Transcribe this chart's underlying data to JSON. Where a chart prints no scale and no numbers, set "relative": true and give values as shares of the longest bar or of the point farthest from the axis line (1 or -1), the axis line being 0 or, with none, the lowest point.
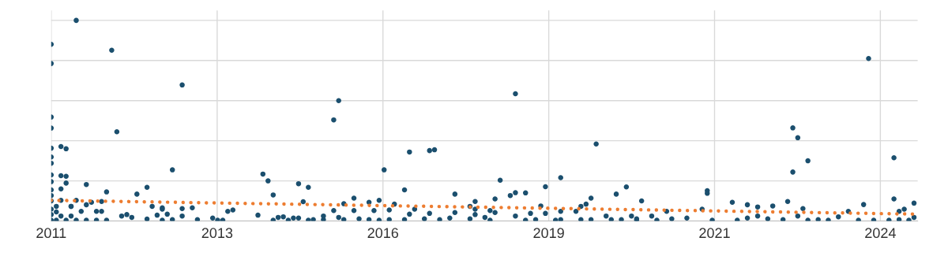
{
  "chart_data": {
    "type": "scatter",
    "relative": true,
    "grid": true,
    "marker": "circle",
    "xlim": [
      "2011-01-01",
      "2025-04-23"
    ],
    "xticks": [
      {
        "value": "2011-01-01",
        "label": "2011"
      },
      {
        "value": "2013-09-28",
        "label": "2013"
      },
      {
        "value": "2016-06-24",
        "label": "2016"
      },
      {
        "value": "2019-03-21",
        "label": "2019"
      },
      {
        "value": "2021-12-15",
        "label": "2021"
      },
      {
        "value": "2024-09-10",
        "label": "2024"
      }
    ],
    "series": [
      {
        "color": "#1b4f6e",
        "x": [
          "2011-06",
          "2011-01",
          "2011-01",
          "2012-01",
          "2013-03",
          "2011-01",
          "2011-01",
          "2012-02",
          "2011-01",
          "2011-03",
          "2011-04",
          "2011-01",
          "2011-01",
          "2011-01",
          "2011-03",
          "2011-04",
          "2011-01",
          "2011-04",
          "2011-08",
          "2011-03",
          "2011-01",
          "2011-12",
          "2011-01",
          "2012-06",
          "2012-08",
          "2013-01",
          "2014-07",
          "2014-08",
          "2014-09",
          "2015-02",
          "2015-04",
          "2015-09",
          "2015-10",
          "2015-03",
          "2015-09",
          "2012-09",
          "2012-11",
          "2012-11",
          "2012-12",
          "2013-03",
          "2013-05",
          "2012-10",
          "2012-03",
          "2012-04",
          "2012-05",
          "2012-08",
          "2012-11",
          "2013-01",
          "2013-03",
          "2013-06",
          "2013-09",
          "2013-10",
          "2013-11",
          "2013-12",
          "2014-01",
          "2014-06",
          "2014-09",
          "2014-10",
          "2014-11",
          "2014-12",
          "2015-01",
          "2015-02",
          "2015-04",
          "2015-05",
          "2015-07",
          "2015-07",
          "2015-10",
          "2011-05",
          "2011-05",
          "2011-03",
          "2011-06",
          "2011-09",
          "2011-11",
          "2011-10",
          "2011-11",
          "2011-08",
          "2011-07",
          "2011-05",
          "2011-08",
          "2011-10",
          "2011-12",
          "2011-02",
          "2011-02",
          "2011-03",
          "2011-01",
          "2011-02",
          "2011-01",
          "2011-01",
          "2011-01",
          "2011-04",
          "2011-06",
          "2016-07",
          "2016-12",
          "2017-04",
          "2017-05",
          "2018-09",
          "2016-11",
          "2017-09",
          "2018-06",
          "2018-08",
          "2018-09",
          "2018-11",
          "2019-03",
          "2019-06",
          "2020-01",
          "2019-12",
          "2020-05",
          "2020-07",
          "2016-01",
          "2015-11",
          "2016-04",
          "2016-06",
          "2016-09",
          "2016-01",
          "2016-05",
          "2016-08",
          "2017-01",
          "2016-12",
          "2017-04",
          "2017-09",
          "2018-01",
          "2017-12",
          "2018-01",
          "2018-05",
          "2018-05",
          "2018-04",
          "2018-01",
          "2015-11",
          "2016-02",
          "2016-04",
          "2016-06",
          "2016-08",
          "2016-11",
          "2017-03",
          "2017-06",
          "2017-08",
          "2017-12",
          "2018-03",
          "2018-04",
          "2018-09",
          "2018-11",
          "2018-12",
          "2019-01",
          "2019-02",
          "2019-03",
          "2019-05",
          "2019-06",
          "2019-06",
          "2019-09",
          "2019-10",
          "2019-11",
          "2019-10",
          "2019-12",
          "2020-03",
          "2020-04",
          "2020-06",
          "2020-08",
          "2020-09",
          "2021-11",
          "2021-11",
          "2024-07",
          "2023-04",
          "2023-05",
          "2023-07",
          "2023-04",
          "2024-12",
          "2024-12",
          "2025-04",
          "2024-06",
          "2023-03",
          "2022-07",
          "2022-09",
          "2022-12",
          "2022-04",
          "2023-06",
          "2020-10",
          "2020-12",
          "2021-04",
          "2021-07",
          "2021-10",
          "2021-12",
          "2022-05",
          "2022-07",
          "2022-09",
          "2022-11",
          "2023-02",
          "2023-05",
          "2023-07",
          "2023-09",
          "2023-11",
          "2024-01",
          "2024-03",
          "2024-05",
          "2024-08",
          "2024-11",
          "2025-01",
          "2025-02",
          "2025-04",
          "2025-01",
          "2025-03",
          "2021-03",
          "2021-01",
          "2020-09"
        ],
        "values": [
          1.0,
          0.881,
          0.785,
          0.851,
          0.678,
          0.518,
          0.463,
          0.445,
          0.363,
          0.371,
          0.36,
          0.319,
          0.288,
          0.23,
          0.226,
          0.223,
          0.196,
          0.189,
          0.182,
          0.16,
          0.155,
          0.145,
          0.127,
          0.134,
          0.168,
          0.255,
          0.234,
          0.2,
          0.13,
          0.186,
          0.168,
          0.504,
          0.6,
          0.096,
          0.052,
          0.073,
          0.059,
          0.066,
          0.034,
          0.062,
          0.066,
          0.029,
          0.025,
          0.032,
          0.018,
          0.01,
          0.004,
          0.007,
          0.025,
          0.007,
          0.015,
          0.004,
          0.004,
          0.048,
          0.055,
          0.029,
          0.004,
          0.018,
          0.021,
          0.004,
          0.015,
          0.015,
          0.004,
          0.007,
          0.007,
          0.025,
          0.018,
          0.073,
          0.073,
          0.103,
          0.103,
          0.093,
          0.097,
          0.048,
          0.048,
          0.081,
          0.048,
          0.025,
          0.004,
          0.004,
          0.004,
          0.073,
          0.045,
          0.025,
          0.004,
          0.004,
          0.1,
          0.059,
          0.032,
          0.004,
          0.004,
          0.255,
          0.344,
          0.351,
          0.355,
          0.634,
          0.155,
          0.134,
          0.203,
          0.127,
          0.141,
          0.14,
          0.171,
          0.216,
          0.384,
          0.114,
          0.134,
          0.17,
          0.114,
          0.086,
          0.093,
          0.103,
          0.084,
          0.052,
          0.052,
          0.055,
          0.059,
          0.034,
          0.038,
          0.042,
          0.097,
          0.073,
          0.059,
          0.11,
          0.042,
          0.052,
          0.032,
          0.007,
          0.011,
          0.007,
          0.004,
          0.007,
          0.007,
          0.011,
          0.007,
          0.015,
          0.011,
          0.018,
          0.004,
          0.025,
          0.004,
          0.038,
          0.007,
          0.075,
          0.038,
          0.004,
          0.007,
          0.048,
          0.048,
          0.073,
          0.084,
          0.007,
          0.007,
          0.025,
          0.007,
          0.007,
          0.025,
          0.004,
          0.151,
          0.138,
          0.81,
          0.464,
          0.415,
          0.3,
          0.244,
          0.315,
          0.11,
          0.089,
          0.082,
          0.097,
          0.081,
          0.07,
          0.075,
          0.093,
          0.062,
          0.1,
          0.025,
          0.011,
          0.015,
          0.059,
          0.004,
          0.004,
          0.015,
          0.025,
          0.011,
          0.007,
          0.025,
          0.004,
          0.007,
          0.004,
          0.021,
          0.048,
          0.004,
          0.004,
          0.004,
          0.048,
          0.059,
          0.018,
          0.007,
          0.004,
          0.048,
          0.004,
          0.011
        ]
      },
      {
        "type": "line",
        "color": "#ed7d31",
        "line_style": "dotted",
        "marker": "none",
        "x": [
          "2011-01-01",
          "2025-04-23"
        ],
        "values": [
          0.103,
          0.034
        ]
      }
    ]
  }
}
